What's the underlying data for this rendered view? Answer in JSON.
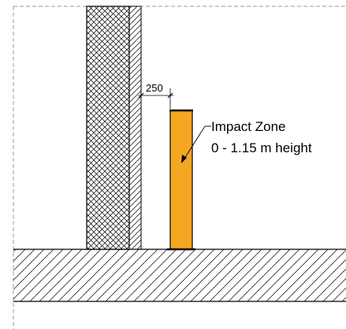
{
  "dimension": {
    "value": "250"
  },
  "annotation": {
    "line1": "Impact Zone",
    "line2": "0 - 1.15 m height"
  },
  "colors": {
    "post_fill": "#f5a623",
    "line": "#000000",
    "frame": "#9a9a9a"
  }
}
